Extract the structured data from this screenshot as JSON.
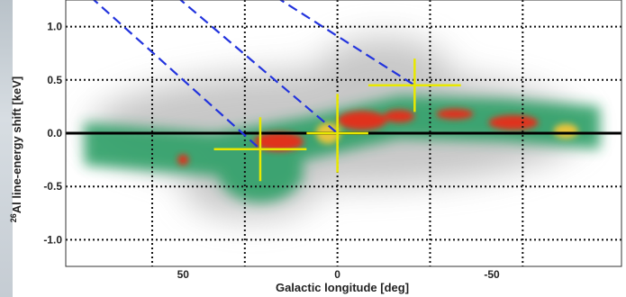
{
  "chart_data": {
    "type": "heatmap",
    "title": "",
    "xlabel": "Galactic longitude [deg]",
    "ylabel_superscript": "26",
    "ylabel": "Al line-energy shift [keV]",
    "xlim": [
      88,
      -92
    ],
    "ylim": [
      -1.25,
      1.25
    ],
    "x_reversed": true,
    "xticks": [
      {
        "value": 50,
        "label": "50"
      },
      {
        "value": 0,
        "label": "0"
      },
      {
        "value": -50,
        "label": "-50"
      }
    ],
    "yticks": [
      {
        "value": 1.0,
        "label": "1.0"
      },
      {
        "value": 0.5,
        "label": "0.5"
      },
      {
        "value": 0.0,
        "label": "0.0"
      },
      {
        "value": -0.5,
        "label": "-0.5"
      },
      {
        "value": -1.0,
        "label": "-1.0"
      }
    ],
    "gridlines_x": [
      60,
      30,
      0,
      -30,
      -60
    ],
    "gridlines_y": [
      1.0,
      0.5,
      0.0,
      -0.5,
      -1.0
    ],
    "grid": true,
    "zero_line": 0.0,
    "colors": {
      "emission_green": "#2ea067",
      "emission_yellow": "#e8c53a",
      "emission_red": "#e0321c",
      "crosses": "#e8e800",
      "dashed_lines": "#2233dd",
      "halo": "#9a9a9a"
    },
    "data_points": [
      {
        "x": 25,
        "y": -0.15,
        "x_err": 15,
        "y_err": 0.3
      },
      {
        "x": 0,
        "y": 0.0,
        "x_err": 10,
        "y_err": 0.37
      },
      {
        "x": -25,
        "y": 0.45,
        "x_err": 15,
        "y_err": 0.25
      }
    ],
    "dashed_lines": [
      {
        "x1": 80,
        "y1": 1.28,
        "x2": 25,
        "y2": -0.15
      },
      {
        "x1": 52,
        "y1": 1.28,
        "x2": 0,
        "y2": 0.0
      },
      {
        "x1": 20,
        "y1": 1.28,
        "x2": -25,
        "y2": 0.45
      }
    ],
    "emission_blobs": [
      {
        "x": 50,
        "y": -0.25,
        "sx": 1.8,
        "sy": 0.05,
        "level": "red"
      },
      {
        "x": 19,
        "y": -0.08,
        "sx": 8,
        "sy": 0.09,
        "level": "red"
      },
      {
        "x": 3,
        "y": 0.0,
        "sx": 4,
        "sy": 0.1,
        "level": "yellow"
      },
      {
        "x": -8,
        "y": 0.12,
        "sx": 8,
        "sy": 0.09,
        "level": "red"
      },
      {
        "x": -20,
        "y": 0.16,
        "sx": 5,
        "sy": 0.06,
        "level": "red"
      },
      {
        "x": -38,
        "y": 0.18,
        "sx": 6,
        "sy": 0.05,
        "level": "red"
      },
      {
        "x": -57,
        "y": 0.1,
        "sx": 8,
        "sy": 0.07,
        "level": "red"
      },
      {
        "x": -74,
        "y": 0.02,
        "sx": 4,
        "sy": 0.07,
        "level": "yellow"
      }
    ]
  }
}
